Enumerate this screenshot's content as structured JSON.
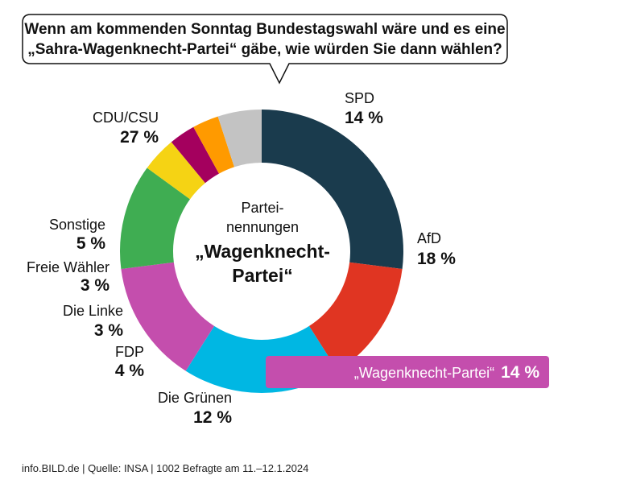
{
  "chart_data": {
    "type": "pie",
    "donut": true,
    "title": "Wenn am kommenden Sonntag Bundestagswahl wäre und es eine „Sahra-Wagenknecht-Partei“ gäbe, wie würden Sie dann wählen?",
    "title_lines": [
      "Wenn am kommenden Sonntag Bundestagswahl wäre und es eine",
      "„Sahra-Wagenknecht-Partei“ gäbe, wie würden Sie dann wählen?"
    ],
    "center_label": {
      "sub_lines": [
        "Partei-",
        "nennungen"
      ],
      "main_lines": [
        "„Wagenknecht-",
        "Partei“"
      ]
    },
    "unit": "%",
    "slices": [
      {
        "label": "CDU/CSU",
        "value": 27,
        "value_label": "27 %",
        "color": "#1a3b4d"
      },
      {
        "label": "SPD",
        "value": 14,
        "value_label": "14 %",
        "color": "#e03522"
      },
      {
        "label": "AfD",
        "value": 18,
        "value_label": "18 %",
        "color": "#00b7e3"
      },
      {
        "label": "„Wagenknecht-Partei“",
        "value": 14,
        "value_label": "14 %",
        "color": "#c44ead",
        "highlight": true
      },
      {
        "label": "Die Grünen",
        "value": 12,
        "value_label": "12 %",
        "color": "#3fad52"
      },
      {
        "label": "FDP",
        "value": 4,
        "value_label": "4 %",
        "color": "#f5d314"
      },
      {
        "label": "Die Linke",
        "value": 3,
        "value_label": "3 %",
        "color": "#a4005e"
      },
      {
        "label": "Freie Wähler",
        "value": 3,
        "value_label": "3 %",
        "color": "#ff9a00"
      },
      {
        "label": "Sonstige",
        "value": 5,
        "value_label": "5 %",
        "color": "#c3c3c3"
      }
    ]
  },
  "footer": {
    "text": "info.BILD.de | Quelle: INSA | 1002 Befragte am 11.–12.1.2024"
  }
}
